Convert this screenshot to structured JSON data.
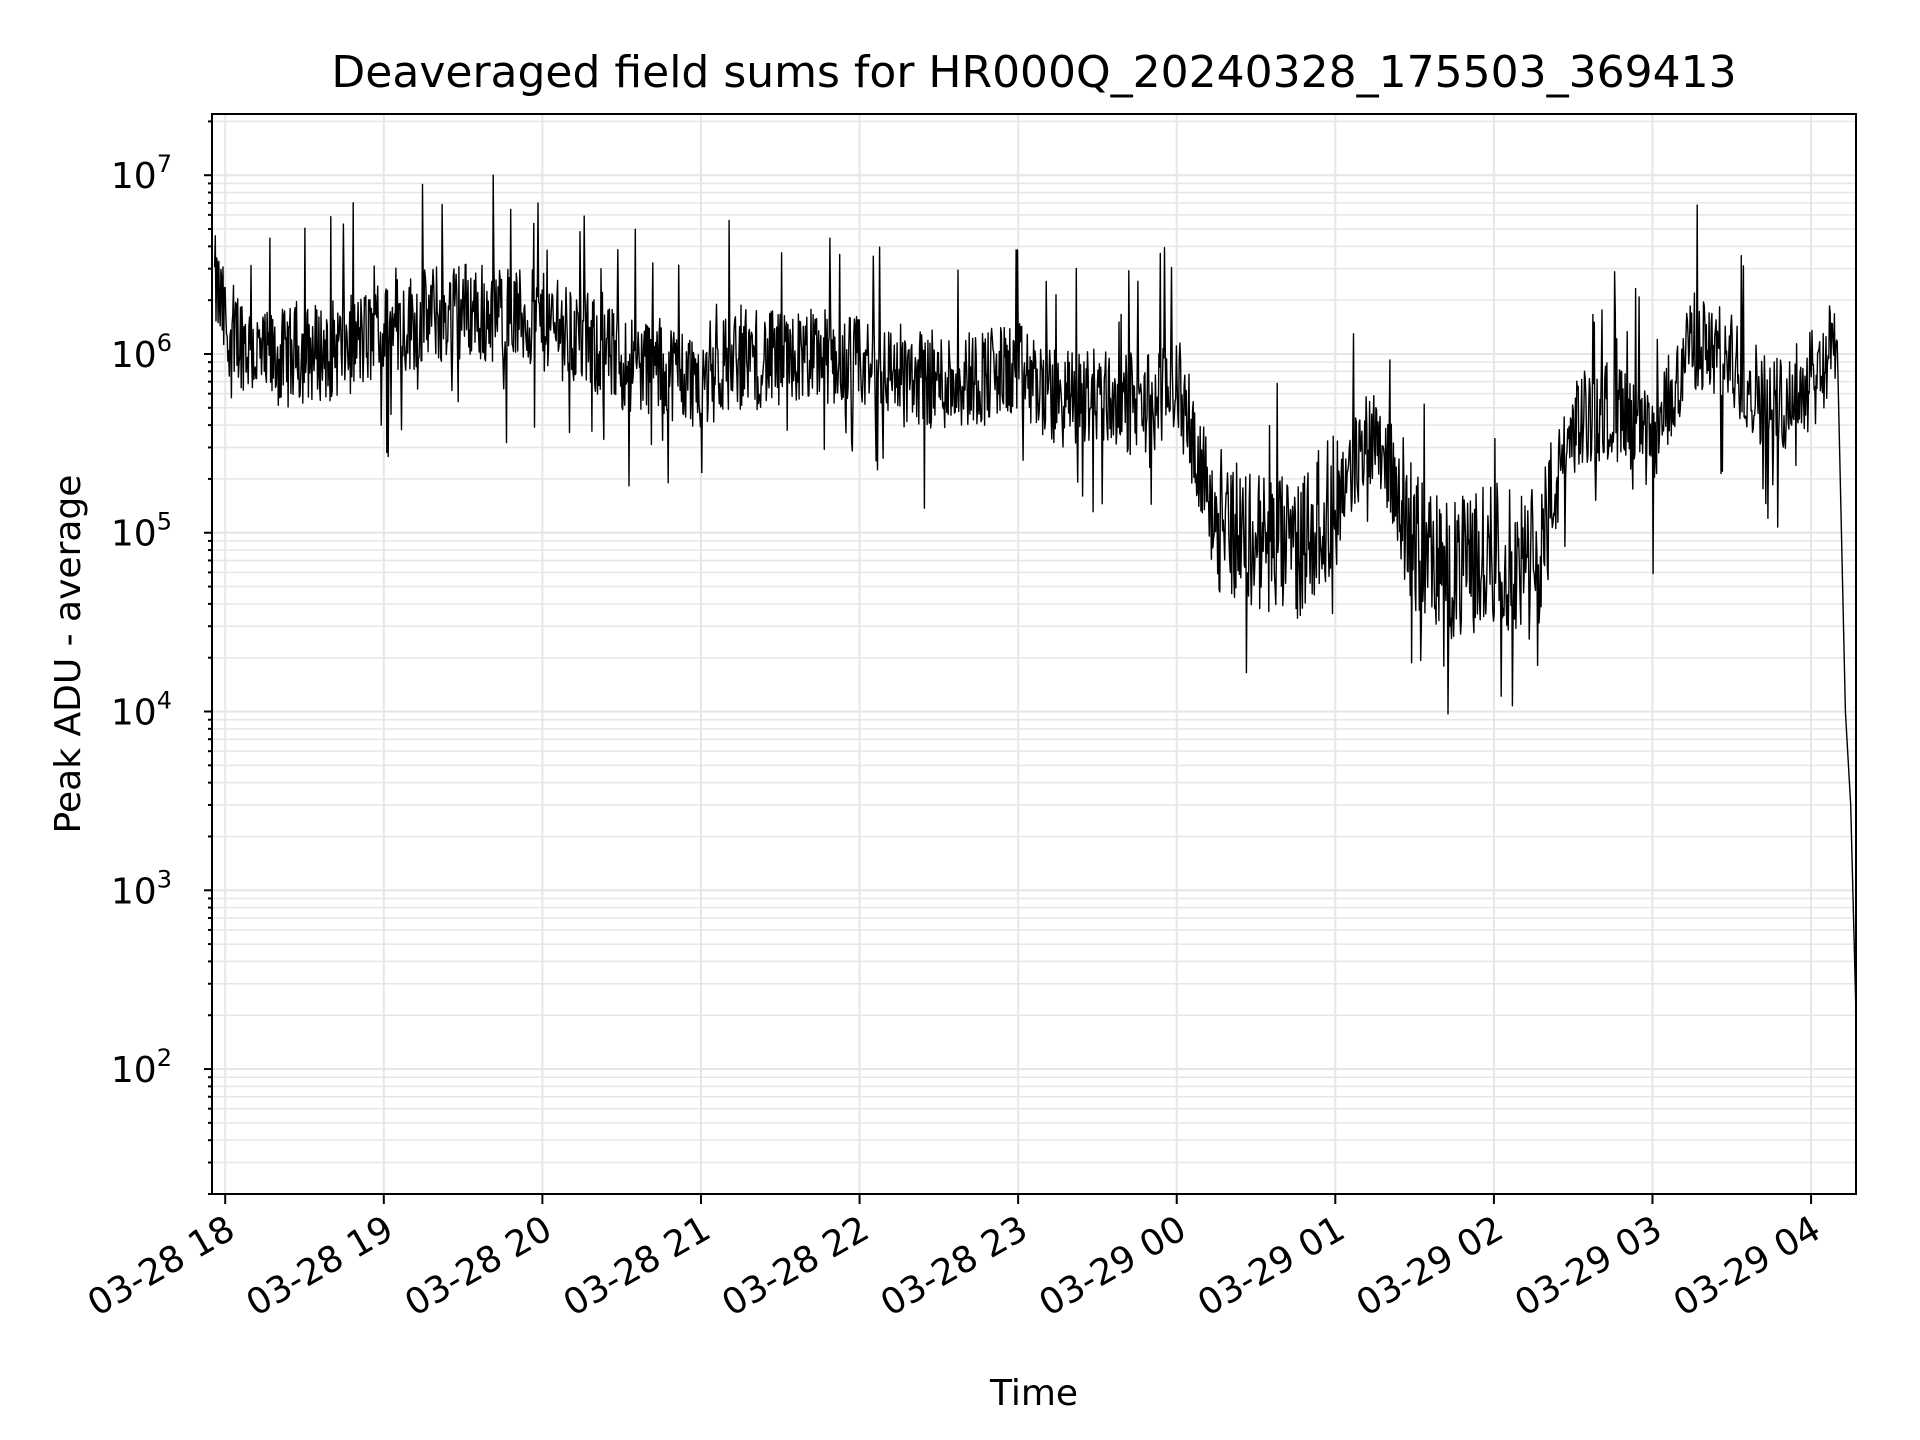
{
  "chart_data": {
    "type": "line",
    "title": "Deaveraged field sums for HR000Q_20240328_175503_369413",
    "xlabel": "Time",
    "ylabel": "Peak ADU - average",
    "yscale": "log",
    "ylim": [
      20,
      22000000
    ],
    "xlim": [
      "2024-03-28 17:55",
      "2024-03-29 04:17"
    ],
    "x_ticks": [
      "03-28 18",
      "03-28 19",
      "03-28 20",
      "03-28 21",
      "03-28 22",
      "03-28 23",
      "03-29 00",
      "03-29 01",
      "03-29 02",
      "03-29 03",
      "03-29 04"
    ],
    "y_ticks": [
      {
        "base": "10",
        "exp": "2",
        "value": 100
      },
      {
        "base": "10",
        "exp": "3",
        "value": 1000
      },
      {
        "base": "10",
        "exp": "4",
        "value": 10000
      },
      {
        "base": "10",
        "exp": "5",
        "value": 100000
      },
      {
        "base": "10",
        "exp": "6",
        "value": 1000000
      },
      {
        "base": "10",
        "exp": "7",
        "value": 10000000
      }
    ],
    "grid": true,
    "line_color": "#000000",
    "grid_color": "#e6e6e6",
    "series": [
      {
        "x": [
          "2024-03-28 17:56",
          "2024-03-28 18:00",
          "2024-03-28 18:15",
          "2024-03-28 18:30",
          "2024-03-28 18:45",
          "2024-03-28 19:00",
          "2024-03-28 19:15",
          "2024-03-28 19:30",
          "2024-03-28 19:45",
          "2024-03-28 20:00",
          "2024-03-28 20:15",
          "2024-03-28 20:30",
          "2024-03-28 20:45",
          "2024-03-28 21:00",
          "2024-03-28 21:15",
          "2024-03-28 21:30",
          "2024-03-28 21:45",
          "2024-03-28 22:00",
          "2024-03-28 22:15",
          "2024-03-28 22:30",
          "2024-03-28 22:45",
          "2024-03-28 23:00",
          "2024-03-28 23:15",
          "2024-03-28 23:30",
          "2024-03-28 23:45",
          "2024-03-29 00:00",
          "2024-03-29 00:15",
          "2024-03-29 00:30",
          "2024-03-29 00:45",
          "2024-03-29 01:00",
          "2024-03-29 01:15",
          "2024-03-29 01:30",
          "2024-03-29 01:45",
          "2024-03-29 02:00",
          "2024-03-29 02:15",
          "2024-03-29 02:30",
          "2024-03-29 02:45",
          "2024-03-29 03:00",
          "2024-03-29 03:15",
          "2024-03-29 03:30",
          "2024-03-29 03:45",
          "2024-03-29 04:00",
          "2024-03-29 04:10",
          "2024-03-29 04:13",
          "2024-03-29 04:15",
          "2024-03-29 04:17"
        ],
        "y": [
          2500000,
          1500000,
          900000,
          1000000,
          1100000,
          1300000,
          1600000,
          1800000,
          1700000,
          1500000,
          1200000,
          900000,
          850000,
          700000,
          1000000,
          900000,
          1000000,
          850000,
          800000,
          700000,
          750000,
          800000,
          550000,
          600000,
          500000,
          700000,
          120000,
          90000,
          80000,
          150000,
          400000,
          90000,
          60000,
          80000,
          60000,
          400000,
          500000,
          300000,
          1200000,
          900000,
          500000,
          700000,
          1200000,
          10000,
          3000,
          200
        ]
      }
    ]
  }
}
